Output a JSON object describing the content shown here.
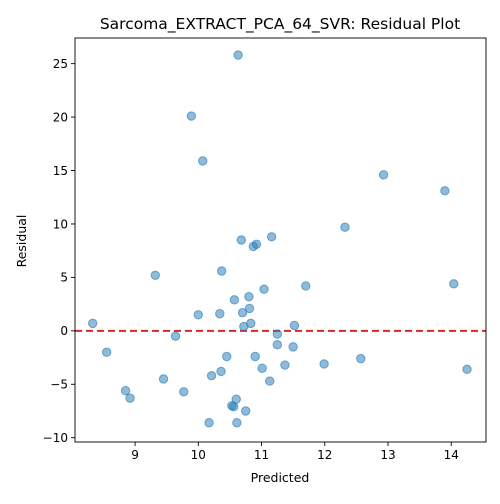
{
  "chart_data": {
    "type": "scatter",
    "title": "Sarcoma_EXTRACT_PCA_64_SVR: Residual Plot",
    "xlabel": "Predicted",
    "ylabel": "Residual",
    "xlim": [
      8.05,
      14.55
    ],
    "ylim": [
      -10.4,
      27.4
    ],
    "xticks": [
      9,
      10,
      11,
      12,
      13,
      14
    ],
    "yticks": [
      -10,
      -5,
      0,
      5,
      10,
      15,
      20,
      25
    ],
    "reference_line": {
      "y": 0,
      "style": "dashed",
      "color": "#d62728"
    },
    "point_color": "#1f77b4",
    "grid": false,
    "legend": "none",
    "points": [
      {
        "x": 10.63,
        "y": 25.8
      },
      {
        "x": 9.89,
        "y": 20.1
      },
      {
        "x": 10.07,
        "y": 15.9
      },
      {
        "x": 12.93,
        "y": 14.6
      },
      {
        "x": 13.9,
        "y": 13.1
      },
      {
        "x": 12.32,
        "y": 9.7
      },
      {
        "x": 11.16,
        "y": 8.8
      },
      {
        "x": 10.68,
        "y": 8.5
      },
      {
        "x": 10.92,
        "y": 8.1
      },
      {
        "x": 10.87,
        "y": 7.9
      },
      {
        "x": 10.37,
        "y": 5.6
      },
      {
        "x": 9.32,
        "y": 5.2
      },
      {
        "x": 14.04,
        "y": 4.4
      },
      {
        "x": 11.7,
        "y": 4.2
      },
      {
        "x": 11.04,
        "y": 3.9
      },
      {
        "x": 10.8,
        "y": 3.2
      },
      {
        "x": 10.57,
        "y": 2.9
      },
      {
        "x": 10.81,
        "y": 2.1
      },
      {
        "x": 10.7,
        "y": 1.7
      },
      {
        "x": 10.34,
        "y": 1.6
      },
      {
        "x": 10.0,
        "y": 1.5
      },
      {
        "x": 8.33,
        "y": 0.7
      },
      {
        "x": 10.83,
        "y": 0.7
      },
      {
        "x": 11.52,
        "y": 0.5
      },
      {
        "x": 10.72,
        "y": 0.4
      },
      {
        "x": 11.25,
        "y": -0.3
      },
      {
        "x": 9.64,
        "y": -0.5
      },
      {
        "x": 11.25,
        "y": -1.3
      },
      {
        "x": 11.5,
        "y": -1.5
      },
      {
        "x": 8.55,
        "y": -2.0
      },
      {
        "x": 10.45,
        "y": -2.4
      },
      {
        "x": 10.9,
        "y": -2.4
      },
      {
        "x": 12.57,
        "y": -2.6
      },
      {
        "x": 11.99,
        "y": -3.1
      },
      {
        "x": 11.37,
        "y": -3.2
      },
      {
        "x": 11.01,
        "y": -3.5
      },
      {
        "x": 14.25,
        "y": -3.6
      },
      {
        "x": 10.36,
        "y": -3.8
      },
      {
        "x": 10.21,
        "y": -4.2
      },
      {
        "x": 9.45,
        "y": -4.5
      },
      {
        "x": 11.13,
        "y": -4.7
      },
      {
        "x": 8.85,
        "y": -5.6
      },
      {
        "x": 9.77,
        "y": -5.7
      },
      {
        "x": 8.92,
        "y": -6.3
      },
      {
        "x": 10.6,
        "y": -6.4
      },
      {
        "x": 10.53,
        "y": -7.0
      },
      {
        "x": 10.56,
        "y": -7.1
      },
      {
        "x": 10.75,
        "y": -7.5
      },
      {
        "x": 10.17,
        "y": -8.6
      },
      {
        "x": 10.61,
        "y": -8.6
      }
    ]
  }
}
